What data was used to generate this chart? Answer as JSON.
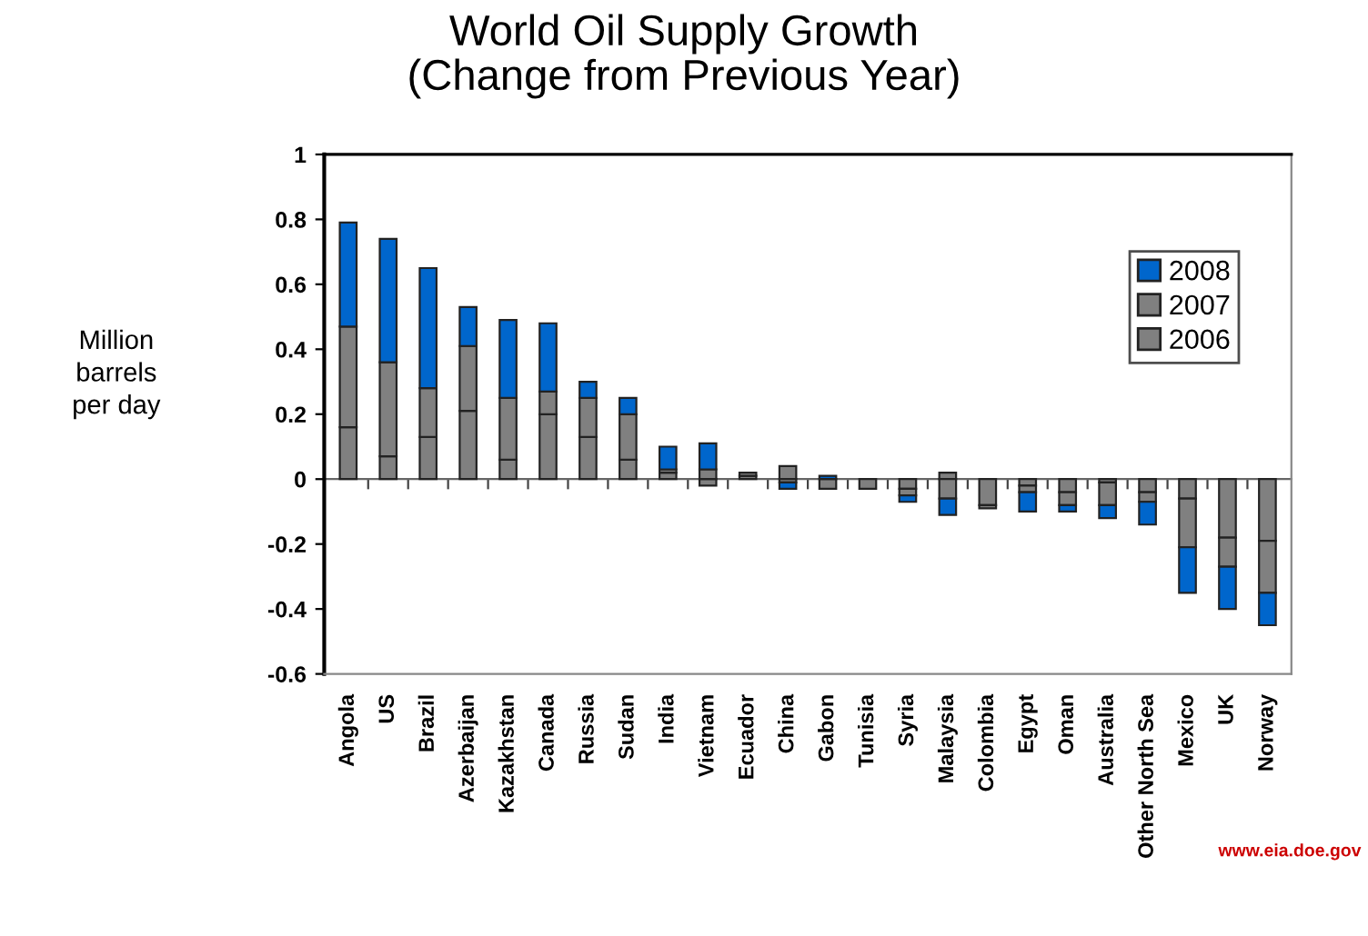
{
  "chart_data": {
    "type": "bar",
    "stacked": true,
    "title": "World Oil Supply Growth\n(Change from Previous Year)",
    "ylabel": "Million\nbarrels\nper day",
    "categories": [
      "Angola",
      "US",
      "Brazil",
      "Azerbaijan",
      "Kazakhstan",
      "Canada",
      "Russia",
      "Sudan",
      "India",
      "Vietnam",
      "Ecuador",
      "China",
      "Gabon",
      "Tunisia",
      "Syria",
      "Malaysia",
      "Colombia",
      "Egypt",
      "Oman",
      "Australia",
      "Other North Sea",
      "Mexico",
      "UK",
      "Norway"
    ],
    "series": [
      {
        "name": "2006",
        "color": "#808080",
        "values": [
          0.16,
          0.07,
          0.13,
          0.21,
          0.06,
          0.2,
          0.13,
          0.06,
          0.02,
          -0.02,
          0.01,
          0.04,
          -0.03,
          -0.03,
          -0.03,
          0.02,
          -0.08,
          -0.02,
          -0.04,
          -0.01,
          -0.04,
          -0.06,
          -0.18,
          -0.19
        ]
      },
      {
        "name": "2007",
        "color": "#808080",
        "values": [
          0.31,
          0.29,
          0.15,
          0.2,
          0.19,
          0.07,
          0.12,
          0.14,
          0.01,
          0.03,
          0.01,
          -0.01,
          0,
          0,
          -0.02,
          -0.06,
          -0.01,
          -0.02,
          -0.04,
          -0.07,
          -0.03,
          -0.15,
          -0.09,
          -0.16
        ]
      },
      {
        "name": "2008",
        "color": "#0066cc",
        "values": [
          0.32,
          0.38,
          0.37,
          0.12,
          0.24,
          0.21,
          0.05,
          0.05,
          0.07,
          0.08,
          0,
          -0.02,
          0.01,
          0,
          -0.02,
          -0.05,
          0,
          -0.06,
          -0.02,
          -0.04,
          -0.07,
          -0.14,
          -0.13,
          -0.1
        ]
      }
    ],
    "ylim": [
      -0.6,
      1
    ],
    "yticks": [
      -0.6,
      -0.4,
      -0.2,
      0,
      0.2,
      0.4,
      0.6,
      0.8,
      1
    ],
    "legend": "top right",
    "annotations": [
      "www.eia.doe.gov"
    ]
  }
}
